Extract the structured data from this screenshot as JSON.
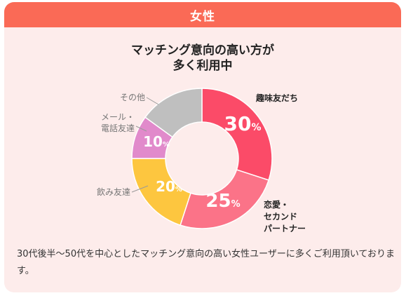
{
  "header": {
    "title": "女性"
  },
  "chart_data": {
    "type": "pie",
    "variant": "donut",
    "title_lines": [
      "マッチング意向の高い方が",
      "多く利用中"
    ],
    "slices": [
      {
        "label_lines": [
          "趣味友だち"
        ],
        "value": 30,
        "color": "#fb4b68",
        "label_color": "#222222",
        "label_bold": true
      },
      {
        "label_lines": [
          "恋愛・",
          "セカンド",
          "パートナー"
        ],
        "value": 25,
        "color": "#fb7388",
        "label_color": "#222222",
        "label_bold": true
      },
      {
        "label_lines": [
          "飲み友達"
        ],
        "value": 20,
        "color": "#fdc63f",
        "label_color": "#777777",
        "label_bold": false
      },
      {
        "label_lines": [
          "メール・",
          "電話友達"
        ],
        "value": 10,
        "color": "#e18acb",
        "label_color": "#777777",
        "label_bold": false
      },
      {
        "label_lines": [
          "その他"
        ],
        "value": 15,
        "color": "#bfbfbf",
        "label_color": "#777777",
        "label_bold": false,
        "show_value": false
      }
    ],
    "unit": "%"
  },
  "footnote": "30代後半〜50代を中心としたマッチング意向の高い女性ユーザーに多くご利用頂いております。"
}
